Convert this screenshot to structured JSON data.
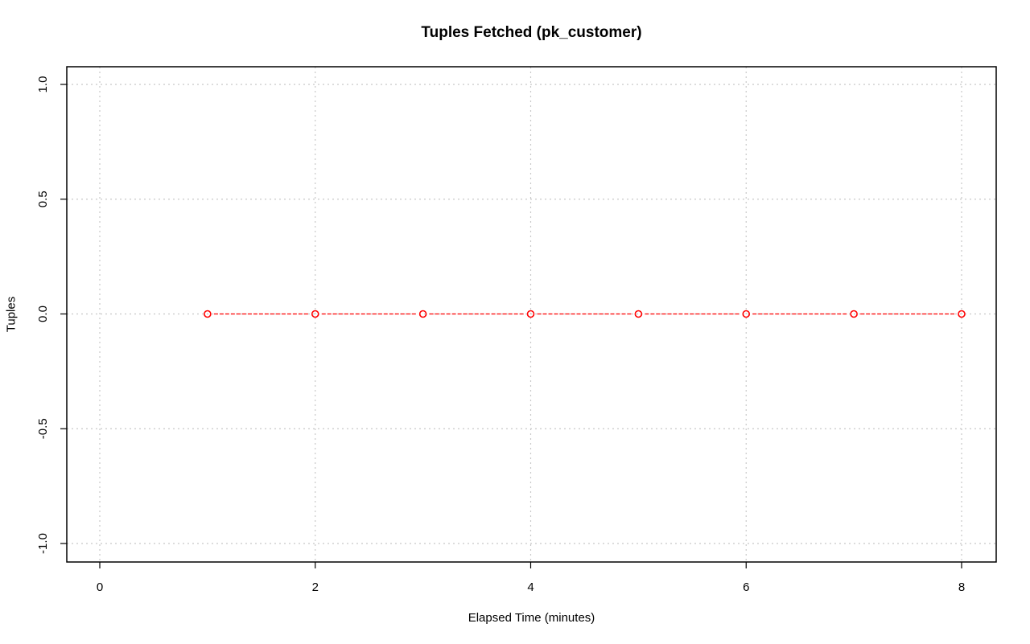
{
  "chart_data": {
    "type": "line",
    "title": "Tuples Fetched (pk_customer)",
    "xlabel": "Elapsed Time (minutes)",
    "ylabel": "Tuples",
    "xlim": [
      0,
      8
    ],
    "ylim": [
      -1,
      1
    ],
    "x_ticks": [
      "0",
      "2",
      "4",
      "6",
      "8"
    ],
    "y_ticks": [
      "-1.0",
      "-0.5",
      "0.0",
      "0.5",
      "1.0"
    ],
    "grid": true,
    "series": [
      {
        "x": [
          1,
          2,
          3,
          4,
          5,
          6,
          7,
          8
        ],
        "values": [
          0,
          0,
          0,
          0,
          0,
          0,
          0,
          0
        ],
        "color": "#ff0000",
        "line_style": "dashed",
        "marker": "open-circle"
      }
    ]
  }
}
